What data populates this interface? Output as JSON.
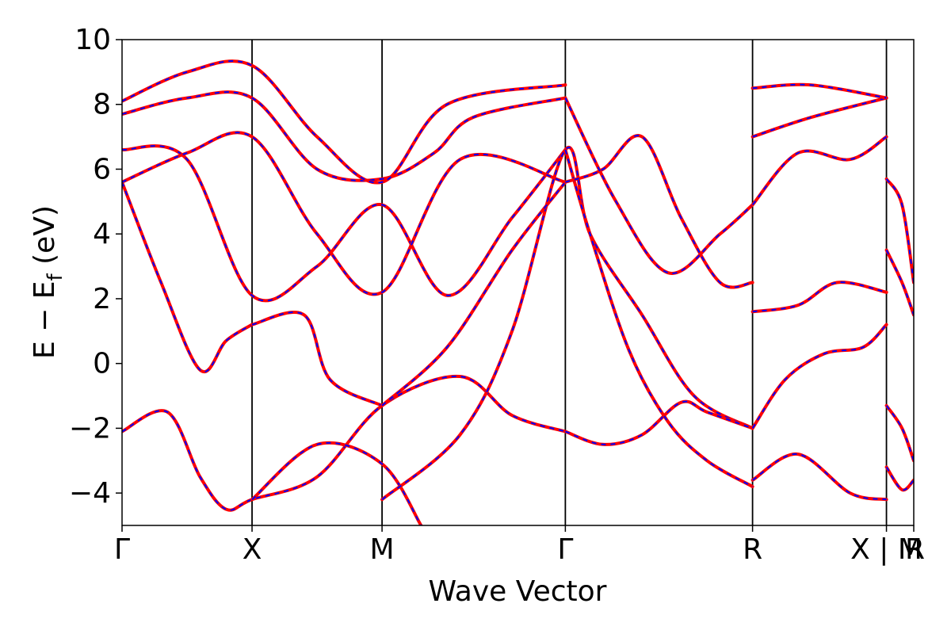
{
  "chart_data": {
    "type": "line",
    "xlabel": "Wave Vector",
    "ylabel": "E − E",
    "ylabel_subscript": "f",
    "ylabel_unit": "(eV)",
    "ylim": [
      -5,
      10
    ],
    "yticks": [
      -4,
      -2,
      0,
      2,
      4,
      6,
      8,
      10
    ],
    "xlim": [
      0,
      6.09
    ],
    "kpoints": [
      {
        "label": "Γ",
        "x": 0
      },
      {
        "label": "X",
        "x": 1.0
      },
      {
        "label": "M",
        "x": 2.0
      },
      {
        "label": "Γ",
        "x": 3.41
      },
      {
        "label": "R",
        "x": 4.85
      },
      {
        "label": "X | M",
        "x": 5.88
      },
      {
        "label": "R",
        "x": 6.09
      }
    ],
    "grid": false,
    "line_styles": {
      "solid_color": "#ff0000",
      "dashed_color": "#0000ff",
      "vline_color": "#000000"
    },
    "series": [
      {
        "x": [
          0,
          0.35,
          0.6,
          0.8,
          1.0,
          1.5,
          2.0,
          2.6,
          3.0,
          3.41
        ],
        "y": [
          -2.1,
          -1.5,
          -3.5,
          -4.5,
          -4.2,
          -3.5,
          -1.3,
          -0.4,
          -1.6,
          -2.1
        ]
      },
      {
        "x": [
          0,
          0.3,
          0.6,
          0.8,
          1.0
        ],
        "y": [
          5.6,
          2.5,
          -0.2,
          0.7,
          1.2
        ]
      },
      {
        "x": [
          1.0,
          1.4,
          1.6,
          2.0
        ],
        "y": [
          1.2,
          1.5,
          -0.5,
          -1.3
        ]
      },
      {
        "x": [
          0,
          0.5,
          1.0,
          1.5,
          2.0,
          2.5,
          3.0,
          3.41
        ],
        "y": [
          6.6,
          6.3,
          2.1,
          3.0,
          4.9,
          2.1,
          4.5,
          6.6
        ]
      },
      {
        "x": [
          0,
          0.5,
          1.0,
          1.5,
          2.0,
          2.6,
          3.41
        ],
        "y": [
          5.6,
          6.5,
          7.0,
          4.0,
          2.2,
          6.3,
          5.6
        ]
      },
      {
        "x": [
          0,
          0.5,
          1.0,
          1.5,
          2.0,
          2.4,
          2.7,
          3.41
        ],
        "y": [
          7.7,
          8.2,
          8.2,
          6.0,
          5.7,
          6.5,
          7.6,
          8.2
        ]
      },
      {
        "x": [
          0,
          0.5,
          1.0,
          1.5,
          2.0,
          2.5,
          3.41
        ],
        "y": [
          8.1,
          9.0,
          9.2,
          7.0,
          5.6,
          8.0,
          8.6
        ]
      },
      {
        "x": [
          1.0,
          1.5,
          2.0,
          2.3
        ],
        "y": [
          -4.2,
          -2.5,
          -3.1,
          -5.0
        ]
      },
      {
        "x": [
          2.0,
          2.6,
          3.0,
          3.41,
          3.6,
          4.0,
          4.4,
          4.85
        ],
        "y": [
          -4.2,
          -2.2,
          1.0,
          6.6,
          4.0,
          1.5,
          -1.0,
          -2.0
        ]
      },
      {
        "x": [
          2.0,
          2.5,
          3.0,
          3.41
        ],
        "y": [
          -1.3,
          0.5,
          3.5,
          5.6
        ]
      },
      {
        "x": [
          3.41,
          3.7,
          4.0,
          4.3,
          4.5,
          4.85
        ],
        "y": [
          -2.1,
          -2.5,
          -2.2,
          -1.2,
          -1.5,
          -2.0
        ]
      },
      {
        "x": [
          3.41,
          3.6,
          3.9,
          4.2,
          4.5,
          4.85
        ],
        "y": [
          6.6,
          4.0,
          0.4,
          -1.8,
          -3.0,
          -3.8
        ]
      },
      {
        "x": [
          3.41,
          3.7,
          4.0,
          4.3,
          4.6,
          4.85
        ],
        "y": [
          5.6,
          6.0,
          7.0,
          4.5,
          2.5,
          2.5
        ]
      },
      {
        "x": [
          3.41,
          3.8,
          4.2,
          4.6,
          4.85
        ],
        "y": [
          8.2,
          5.0,
          2.8,
          4.0,
          4.9
        ]
      },
      {
        "x": [
          4.85,
          5.1,
          5.4,
          5.7,
          5.88
        ],
        "y": [
          -2.0,
          -0.5,
          0.3,
          0.5,
          1.2
        ]
      },
      {
        "x": [
          4.85,
          5.2,
          5.5,
          5.88
        ],
        "y": [
          1.6,
          1.8,
          2.5,
          2.2
        ]
      },
      {
        "x": [
          4.85,
          5.2,
          5.6,
          5.88
        ],
        "y": [
          4.9,
          6.5,
          6.3,
          7.0
        ]
      },
      {
        "x": [
          4.85,
          5.3,
          5.88
        ],
        "y": [
          7.0,
          7.6,
          8.2
        ]
      },
      {
        "x": [
          4.85,
          5.3,
          5.88
        ],
        "y": [
          8.5,
          8.6,
          8.2
        ]
      },
      {
        "x": [
          4.85,
          5.2,
          5.6,
          5.88
        ],
        "y": [
          -3.6,
          -2.8,
          -4.0,
          -4.2
        ]
      },
      {
        "x": [
          5.88,
          6.0,
          6.09
        ],
        "y": [
          -1.3,
          -2.0,
          -3.0
        ]
      },
      {
        "x": [
          5.88,
          6.0,
          6.09
        ],
        "y": [
          -3.2,
          -3.9,
          -3.6
        ]
      },
      {
        "x": [
          5.88,
          6.0,
          6.09
        ],
        "y": [
          5.7,
          4.9,
          2.5
        ]
      },
      {
        "x": [
          5.88,
          6.0,
          6.09
        ],
        "y": [
          3.5,
          2.5,
          1.5
        ]
      }
    ]
  }
}
